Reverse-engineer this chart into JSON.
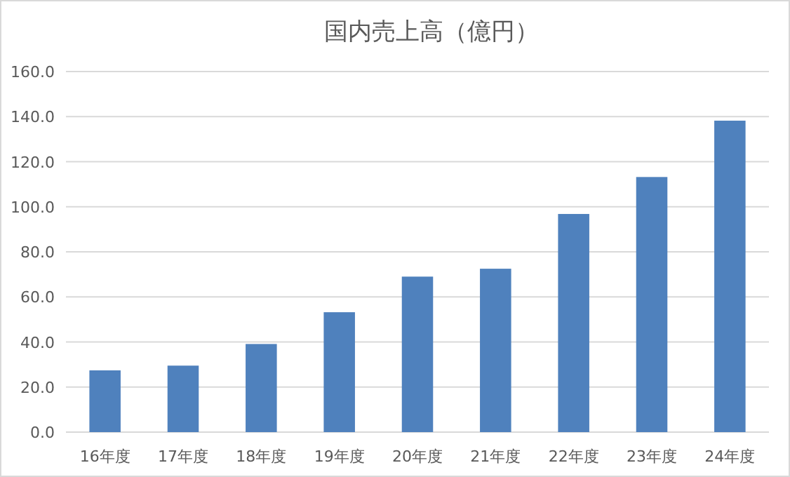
{
  "chart_data": {
    "type": "bar",
    "title": "国内売上高（億円）",
    "categories": [
      "16年度",
      "17年度",
      "18年度",
      "19年度",
      "20年度",
      "21年度",
      "22年度",
      "23年度",
      "24年度"
    ],
    "values": [
      27.4,
      29.5,
      39.1,
      53.2,
      69.0,
      72.5,
      96.8,
      113.2,
      138.2
    ],
    "color": "#4f81bd",
    "ylim": [
      0,
      160
    ],
    "yticks": [
      {
        "value": 0,
        "label": "0.0"
      },
      {
        "value": 20,
        "label": "20.0"
      },
      {
        "value": 40,
        "label": "40.0"
      },
      {
        "value": 60,
        "label": "60.0"
      },
      {
        "value": 80,
        "label": "80.0"
      },
      {
        "value": 100,
        "label": "100.0"
      },
      {
        "value": 120,
        "label": "120.0"
      },
      {
        "value": 140,
        "label": "140.0"
      },
      {
        "value": 160,
        "label": "160.0"
      }
    ],
    "grid": "y"
  }
}
